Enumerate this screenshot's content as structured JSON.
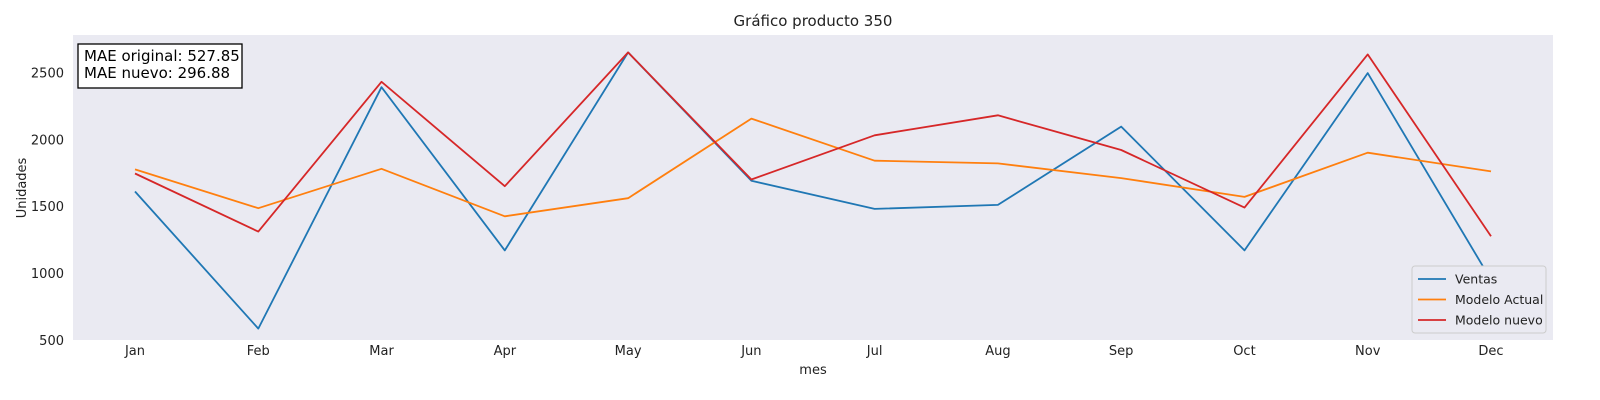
{
  "chart_data": {
    "type": "line",
    "title": "Gráfico producto 350",
    "xlabel": "mes",
    "ylabel": "Unidades",
    "categories": [
      "Jan",
      "Feb",
      "Mar",
      "Apr",
      "May",
      "Jun",
      "Jul",
      "Aug",
      "Sep",
      "Oct",
      "Nov",
      "Dec"
    ],
    "ylim": [
      500,
      2780
    ],
    "yticks": [
      500,
      1000,
      1500,
      2000,
      2500
    ],
    "grid": false,
    "legend_position": "lower-right",
    "series": [
      {
        "name": "Ventas",
        "color": "#1f77b4",
        "values": [
          1610,
          585,
          2390,
          1170,
          2650,
          1690,
          1480,
          1510,
          2095,
          1170,
          2495,
          950
        ]
      },
      {
        "name": "Modelo Actual",
        "color": "#ff7f0e",
        "values": [
          1775,
          1485,
          1780,
          1425,
          1560,
          2155,
          1840,
          1820,
          1710,
          1570,
          1900,
          1760
        ]
      },
      {
        "name": "Modelo nuevo",
        "color": "#d62728",
        "values": [
          1745,
          1310,
          2430,
          1650,
          2650,
          1700,
          2030,
          2180,
          1920,
          1490,
          2635,
          1275
        ]
      }
    ],
    "annotation": {
      "line1": "MAE original: 527.85",
      "line2": "MAE nuevo: 296.88"
    }
  }
}
